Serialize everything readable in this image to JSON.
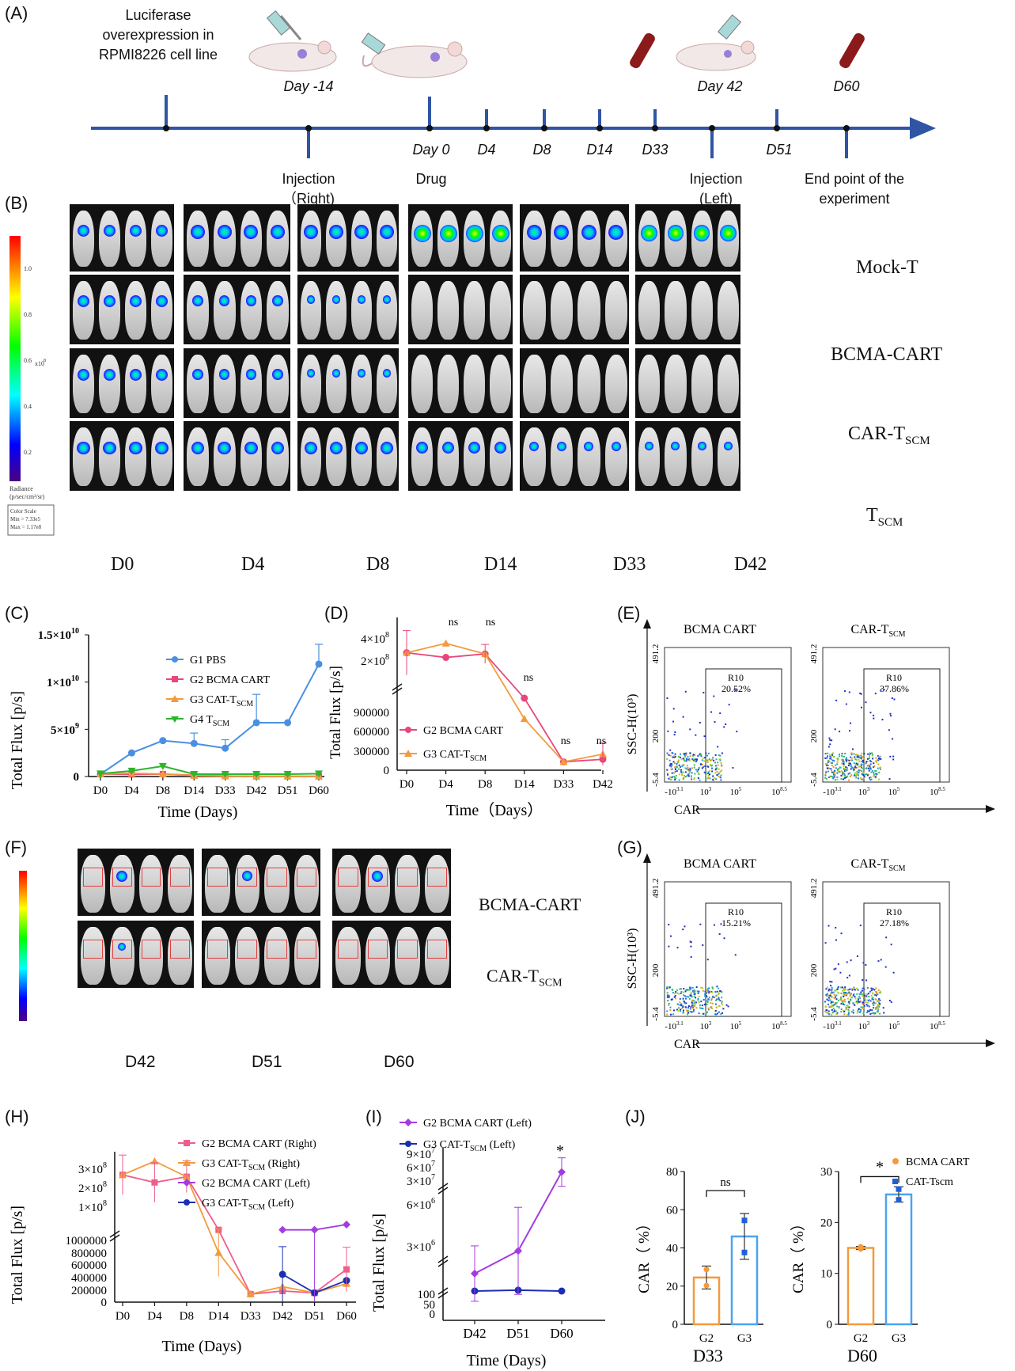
{
  "panelA": {
    "label": "(A)",
    "luciferase_note": [
      "Luciferase",
      "overexpression in",
      "RPMI8226 cell line"
    ],
    "top_days": [
      "Day -14",
      "Day 42",
      "D60"
    ],
    "mid_days": [
      "Day 0",
      "D4",
      "D8",
      "D14",
      "D33",
      "D51"
    ],
    "bottom_labels": {
      "injection_right": [
        "Injection",
        "（Right)"
      ],
      "drug": "Drug",
      "injection_left": [
        "Injection",
        "(Left)"
      ],
      "end_point": [
        "End point of the",
        "experiment"
      ]
    }
  },
  "panelB": {
    "label": "(B)",
    "rows": [
      "Mock-T",
      "BCMA-CART",
      "CAR-T",
      "T"
    ],
    "row_subscripts": [
      "",
      "",
      "SCM",
      "SCM"
    ],
    "cols": [
      "D0",
      "D4",
      "D8",
      "D14",
      "D33",
      "D42"
    ],
    "colorbar_ticks": [
      "1.0",
      "0.8",
      "0.6",
      "0.4",
      "0.2"
    ],
    "colorbar_unit": "x10",
    "colorbar_exp": "8",
    "colorbar_title": [
      "Radiance",
      "(p/sec/cm²/sr)"
    ],
    "colorbar_scale": [
      "Color Scale",
      "Min = 7.33e5",
      "Max = 1.17e8"
    ]
  },
  "panelC": {
    "label": "(C)",
    "ylabel": "Total Flux [p/s]",
    "xlabel": "Time (Days)",
    "yticks": [
      "0",
      "5×10",
      "1×10",
      "1.5×10"
    ],
    "ytick_exps": [
      "",
      "9",
      "10",
      "10"
    ],
    "legend": [
      "G1 PBS",
      "G2 BCMA CART",
      "G3 CAT-T",
      "G4 T"
    ],
    "legend_sub": [
      "",
      "",
      "SCM",
      "SCM"
    ]
  },
  "panelD": {
    "label": "(D)",
    "ylabel": "Total Flux [p/s]",
    "xlabel": "Time（Days）",
    "yticks_low": [
      "0",
      "300000",
      "600000",
      "900000"
    ],
    "yticks_high": [
      "2×10",
      "4×10"
    ],
    "ytick_high_exps": [
      "8",
      "8"
    ],
    "sig": [
      "ns",
      "ns",
      "ns",
      "ns",
      "ns"
    ],
    "legend": [
      "G2 BCMA CART",
      "G3 CAT-T"
    ],
    "legend_sub": [
      "",
      "SCM"
    ]
  },
  "panelE": {
    "label": "(E)",
    "titles": [
      "BCMA CART",
      "CAR-T"
    ],
    "title_sub": [
      "",
      "SCM"
    ],
    "gate": [
      "R10",
      "R10"
    ],
    "pct": [
      "20.52%",
      "37.86%"
    ],
    "ylabel": "SSC-H(10³)",
    "xlabel": "CAR",
    "yticks": [
      "491.2",
      "200",
      "-5.4"
    ],
    "xticks": [
      "-10",
      "10",
      "10",
      "10"
    ],
    "xtick_exps": [
      "3.1",
      "3",
      "5",
      "8.5"
    ]
  },
  "panelF": {
    "label": "(F)",
    "rows": [
      "BCMA-CART",
      "CAR-T"
    ],
    "row_sub": [
      "",
      "SCM"
    ],
    "cols": [
      "D42",
      "D51",
      "D60"
    ]
  },
  "panelG": {
    "label": "(G)",
    "titles": [
      "BCMA CART",
      "CAR-T"
    ],
    "title_sub": [
      "",
      "SCM"
    ],
    "gate": [
      "R10",
      "R10"
    ],
    "pct": [
      "15.21%",
      "27.18%"
    ],
    "ylabel": "SSC-H(10³)",
    "xlabel": "CAR",
    "yticks": [
      "491.2",
      "200",
      "-5.4"
    ],
    "xticks": [
      "-10",
      "10",
      "10",
      "10"
    ],
    "xtick_exps": [
      "3.1",
      "3",
      "5",
      "8.5"
    ]
  },
  "panelH": {
    "label": "(H)",
    "ylabel": "Total Flux [p/s]",
    "xlabel": "Time (Days)",
    "yticks_low": [
      "0",
      "200000",
      "400000",
      "600000",
      "800000",
      "1000000"
    ],
    "yticks_high": [
      "1×10",
      "2×10",
      "3×10"
    ],
    "ytick_high_exps": [
      "8",
      "8",
      "8"
    ],
    "legend": [
      "G2 BCMA CART (Right)",
      "G3 CAT-T",
      "G2 BCMA CART (Left)",
      "G3 CAT-T"
    ],
    "legend_sub": [
      "",
      "SCM",
      "",
      "SCM"
    ],
    "legend_tail": [
      "",
      " (Right)",
      "",
      " (Left)"
    ]
  },
  "panelI": {
    "label": "(I)",
    "ylabel": "Total Flux [p/s]",
    "xlabel": "Time (Days)",
    "yticks_low": [
      "0",
      "50",
      "100"
    ],
    "yticks_mid": [
      "3×10",
      "6×10"
    ],
    "ytick_mid_exps": [
      "6",
      "6"
    ],
    "yticks_high": [
      "3×10",
      "6×10",
      "9×10"
    ],
    "ytick_high_exps": [
      "7",
      "7",
      "7"
    ],
    "sig": "*",
    "legend": [
      "G2 BCMA CART (Left)",
      "G3 CAT-T"
    ],
    "legend_sub": [
      "",
      "SCM"
    ],
    "legend_tail": [
      "",
      " (Left)"
    ]
  },
  "panelJ": {
    "label": "(J)",
    "ylabel": "CAR（ %）",
    "left": {
      "title": "D33",
      "sig": "ns",
      "yticks": [
        "0",
        "20",
        "40",
        "60",
        "80"
      ]
    },
    "right": {
      "title": "D60",
      "sig": "*",
      "yticks": [
        "0",
        "10",
        "20",
        "30"
      ]
    },
    "categories": [
      "G2",
      "G3"
    ],
    "legend": [
      "BCMA CART",
      "CAT-Tscm"
    ]
  },
  "chart_data": [
    {
      "type": "line",
      "panel": "C",
      "x": [
        "D0",
        "D4",
        "D8",
        "D14",
        "D33",
        "D42",
        "D51",
        "D60"
      ],
      "ylabel": "Total Flux [p/s]",
      "xlabel": "Time (Days)",
      "ylim": [
        0,
        15000000000
      ],
      "series": [
        {
          "name": "G1 PBS",
          "color": "#4a90e2",
          "values": [
            250000000,
            2500000000,
            3800000000,
            3500000000,
            3000000000,
            5700000000,
            5700000000,
            11900000000
          ],
          "err": [
            0,
            0,
            0,
            1100000000,
            900000000,
            3000000000,
            0,
            2100000000
          ]
        },
        {
          "name": "G2 BCMA CART",
          "color": "#e8477a",
          "values": [
            270000000,
            230000000,
            260000000,
            130000000,
            50000000,
            20000000,
            20000000,
            20000000
          ]
        },
        {
          "name": "G3 CAT-TSCM",
          "color": "#f39a3c",
          "values": [
            270000000,
            350000000,
            260000000,
            90000000,
            50000000,
            20000000,
            20000000,
            20000000
          ]
        },
        {
          "name": "G4 TSCM",
          "color": "#2db52d",
          "values": [
            300000000,
            600000000,
            1100000000,
            250000000,
            250000000,
            250000000,
            250000000,
            300000000
          ]
        }
      ]
    },
    {
      "type": "line",
      "panel": "D",
      "x": [
        "D0",
        "D4",
        "D8",
        "D14",
        "D33",
        "D42"
      ],
      "ylabel": "Total Flux [p/s]",
      "xlabel": "Time（Days）",
      "series": [
        {
          "name": "G2 BCMA CART",
          "color": "#e8477a",
          "values": [
            270000000,
            230000000,
            260000000,
            1100000,
            130000,
            170000
          ]
        },
        {
          "name": "G3 CAT-TSCM",
          "color": "#f39a3c",
          "values": [
            270000000,
            350000000,
            260000000,
            800000,
            130000,
            250000
          ]
        }
      ]
    },
    {
      "type": "line",
      "panel": "H",
      "x": [
        "D0",
        "D4",
        "D8",
        "D14",
        "D33",
        "D42",
        "D51",
        "D60"
      ],
      "ylabel": "Total Flux [p/s]",
      "xlabel": "Time (Days)",
      "series": [
        {
          "name": "G2 BCMA CART (Right)",
          "color": "#ef5e8b",
          "values": [
            270000000,
            230000000,
            260000000,
            1200000,
            130000,
            180000,
            150000,
            530000
          ]
        },
        {
          "name": "G3 CAT-TSCM (Right)",
          "color": "#f39a3c",
          "values": [
            270000000,
            350000000,
            260000000,
            800000,
            130000,
            250000,
            150000,
            300000
          ]
        },
        {
          "name": "G2 BCMA CART (Left)",
          "color": "#a43be0",
          "values": [
            null,
            null,
            null,
            null,
            null,
            1200000,
            1200000,
            1300000
          ]
        },
        {
          "name": "G3 CAT-TSCM (Left)",
          "color": "#1a2fb0",
          "values": [
            null,
            null,
            null,
            null,
            null,
            450000,
            150000,
            350000
          ]
        }
      ]
    },
    {
      "type": "line",
      "panel": "I",
      "x": [
        "D42",
        "D51",
        "D60"
      ],
      "ylabel": "Total Flux [p/s]",
      "xlabel": "Time (Days)",
      "series": [
        {
          "name": "G2 BCMA CART (Left)",
          "color": "#a43be0",
          "values": [
            2200000,
            3500000,
            50000000
          ]
        },
        {
          "name": "G3 CAT-TSCM (Left)",
          "color": "#1a2fb0",
          "values": [
            1200000,
            1250000,
            1200000
          ]
        }
      ]
    },
    {
      "type": "bar",
      "panel": "J-D33",
      "categories": [
        "G2",
        "G3"
      ],
      "values": [
        24.5,
        46
      ],
      "ylim": [
        0,
        80
      ],
      "title": "D33",
      "ylabel": "CAR（ %）"
    },
    {
      "type": "bar",
      "panel": "J-D60",
      "categories": [
        "G2",
        "G3"
      ],
      "values": [
        15,
        25.5
      ],
      "ylim": [
        0,
        30
      ],
      "title": "D60",
      "ylabel": "CAR（ %）"
    }
  ]
}
